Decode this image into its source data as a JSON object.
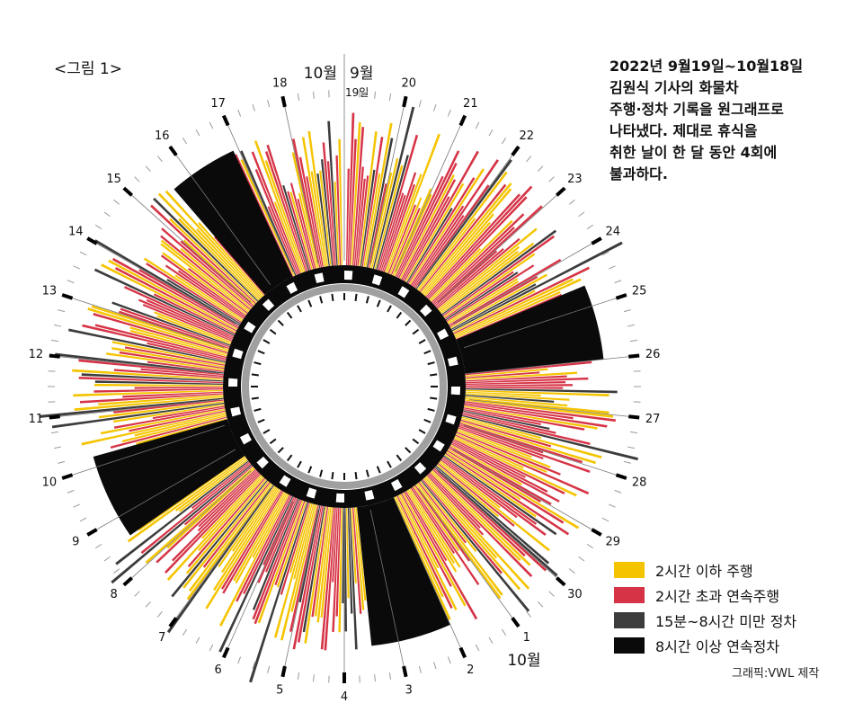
{
  "figure_label": "<그림 1>",
  "title_lines": [
    "2022년 9월19일~10월18일",
    "김원식 기사의 화물차",
    "주행·정차 기록을 원그래프로",
    "나타냈다. 제대로 휴식을",
    "취한 날이 한 달 동안 4회에",
    "불과하다."
  ],
  "credit": "그래픽:VWL 제작",
  "legend": [
    {
      "label": "2시간 이하 주행",
      "color": "#F5C400"
    },
    {
      "label": "2시간 초과 연속주행",
      "color": "#D63446"
    },
    {
      "label": "15분~8시간 미만 정차",
      "color": "#3C3C3C"
    },
    {
      "label": "8시간 이상 연속정차",
      "color": "#0A0A0A"
    }
  ],
  "chart_data": {
    "type": "radial",
    "month_labels": {
      "start_month": "9월",
      "end_month": "10월",
      "start_day": "19일",
      "bottom_month": "10월"
    },
    "day_labels": [
      "20",
      "21",
      "22",
      "23",
      "24",
      "25",
      "26",
      "27",
      "28",
      "29",
      "30",
      "1",
      "2",
      "3",
      "4",
      "5",
      "6",
      "7",
      "8",
      "9",
      "10",
      "11",
      "12",
      "13",
      "14",
      "15",
      "16",
      "17",
      "18"
    ],
    "long_rests": [
      {
        "label": "8시간 이상 연속정차",
        "start_day": 5.6,
        "end_day": 7.0,
        "category": "8시간 이상 연속정차"
      },
      {
        "label": "8시간 이상 연속정차",
        "start_day": 13.0,
        "end_day": 14.5,
        "category": "8시간 이상 연속정차"
      },
      {
        "label": "8시간 이상 연속정차",
        "start_day": 19.6,
        "end_day": 21.2,
        "category": "8시간 이상 연속정차"
      },
      {
        "label": "8시간 이상 연속정차",
        "start_day": 26.6,
        "end_day": 27.9,
        "category": "8시간 이상 연속정차"
      }
    ],
    "categories": [
      "2시간 이하 주행",
      "2시간 초과 연속주행",
      "15분~8시간 미만 정차",
      "8시간 이상 연속정차"
    ]
  }
}
